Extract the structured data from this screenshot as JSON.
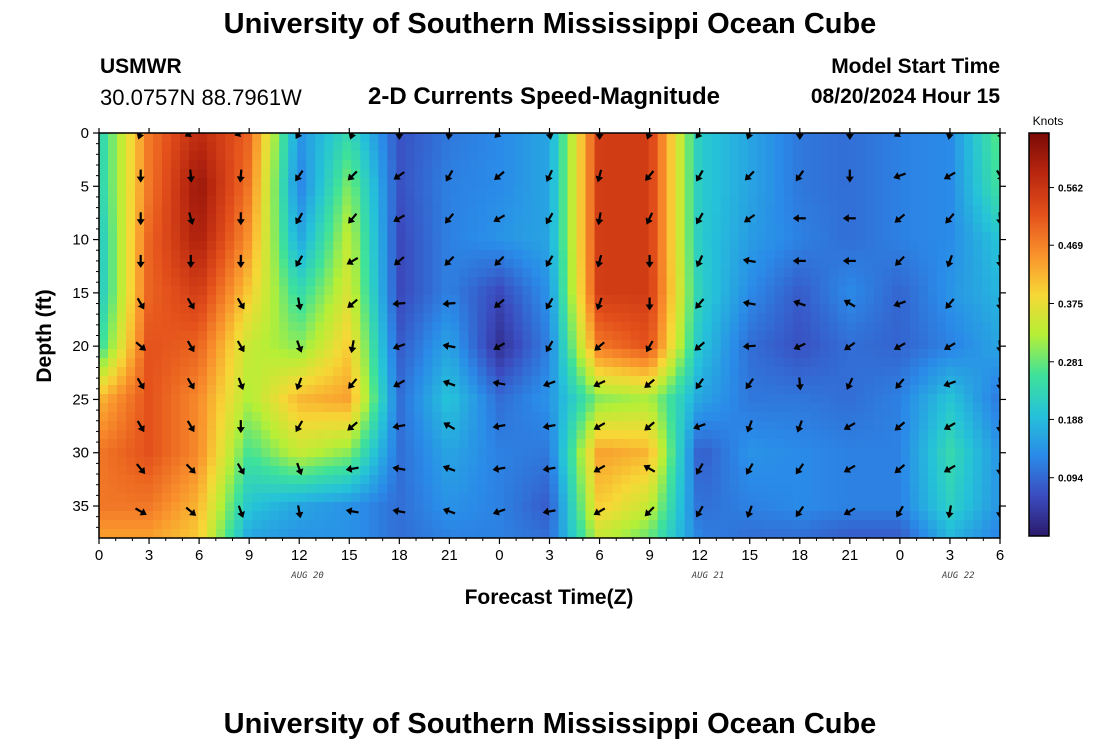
{
  "page": {
    "title": "University of Southern Mississippi Ocean Cube",
    "footer_title": "University of Southern Mississippi Ocean Cube",
    "station": "USMWR",
    "coordinates": "30.0757N  88.7961W",
    "subtitle": "2-D Currents Speed-Magnitude",
    "model_start_label": "Model Start Time",
    "model_start_value": "08/20/2024 Hour 15"
  },
  "chart_data": {
    "type": "heatmap",
    "title": "2-D Currents Speed-Magnitude",
    "xlabel": "Forecast Time(Z)",
    "ylabel": "Depth (ft)",
    "xlim": [
      0,
      54
    ],
    "ylim": [
      0,
      38
    ],
    "y_inverted": true,
    "x_ticks": [
      0,
      3,
      6,
      9,
      12,
      15,
      18,
      21,
      24,
      27,
      30,
      33,
      36,
      39,
      42,
      45,
      48,
      51,
      54
    ],
    "x_tick_labels": [
      "0",
      "3",
      "6",
      "9",
      "12",
      "15",
      "18",
      "21",
      "0",
      "3",
      "6",
      "9",
      "12",
      "15",
      "18",
      "21",
      "0",
      "3",
      "6"
    ],
    "y_ticks": [
      0,
      5,
      10,
      15,
      20,
      25,
      30,
      35
    ],
    "y_tick_labels": [
      "0",
      "5",
      "10",
      "15",
      "20",
      "25",
      "30",
      "35"
    ],
    "date_labels": [
      {
        "x": 12.5,
        "text": "AUG 20"
      },
      {
        "x": 36.5,
        "text": "AUG 21"
      },
      {
        "x": 51.5,
        "text": "AUG 22"
      }
    ],
    "colorbar": {
      "unit": "Knots",
      "min": 0.0,
      "max": 0.65,
      "tick_values": [
        0.094,
        0.188,
        0.281,
        0.375,
        0.469,
        0.562
      ],
      "tick_labels": [
        "0.094",
        "0.188",
        "0.281",
        "0.375",
        "0.469",
        "0.562"
      ],
      "colormap": [
        "#2b1a6b",
        "#3b4cc0",
        "#2a8be8",
        "#25c2d9",
        "#3fe29a",
        "#b6ef36",
        "#f7d736",
        "#f9902c",
        "#e4501b",
        "#b8260f",
        "#7a0a06"
      ]
    },
    "grid_x": [
      0,
      3,
      6,
      9,
      12,
      15,
      18,
      21,
      24,
      27,
      30,
      33,
      36,
      39,
      42,
      45,
      48,
      51,
      54
    ],
    "grid_y": [
      0,
      5,
      10,
      15,
      20,
      25,
      30,
      35,
      38
    ],
    "speed_knots": [
      [
        0.22,
        0.48,
        0.58,
        0.5,
        0.14,
        0.24,
        0.07,
        0.11,
        0.13,
        0.16,
        0.55,
        0.55,
        0.21,
        0.16,
        0.11,
        0.1,
        0.12,
        0.13,
        0.28
      ],
      [
        0.22,
        0.48,
        0.62,
        0.48,
        0.12,
        0.3,
        0.07,
        0.12,
        0.13,
        0.16,
        0.55,
        0.55,
        0.21,
        0.16,
        0.11,
        0.1,
        0.12,
        0.13,
        0.26
      ],
      [
        0.2,
        0.5,
        0.6,
        0.45,
        0.16,
        0.34,
        0.06,
        0.12,
        0.14,
        0.16,
        0.55,
        0.55,
        0.21,
        0.15,
        0.12,
        0.1,
        0.12,
        0.13,
        0.2
      ],
      [
        0.2,
        0.5,
        0.55,
        0.4,
        0.24,
        0.36,
        0.06,
        0.12,
        0.06,
        0.14,
        0.55,
        0.55,
        0.22,
        0.13,
        0.08,
        0.13,
        0.09,
        0.14,
        0.18
      ],
      [
        0.24,
        0.52,
        0.5,
        0.34,
        0.3,
        0.4,
        0.08,
        0.16,
        0.03,
        0.12,
        0.48,
        0.52,
        0.2,
        0.1,
        0.07,
        0.1,
        0.09,
        0.12,
        0.16
      ],
      [
        0.42,
        0.52,
        0.46,
        0.32,
        0.42,
        0.44,
        0.1,
        0.2,
        0.1,
        0.14,
        0.3,
        0.32,
        0.16,
        0.11,
        0.11,
        0.1,
        0.12,
        0.2,
        0.11
      ],
      [
        0.48,
        0.52,
        0.46,
        0.26,
        0.34,
        0.3,
        0.1,
        0.16,
        0.12,
        0.11,
        0.44,
        0.42,
        0.08,
        0.14,
        0.13,
        0.12,
        0.12,
        0.24,
        0.14
      ],
      [
        0.48,
        0.48,
        0.42,
        0.2,
        0.16,
        0.14,
        0.1,
        0.14,
        0.12,
        0.08,
        0.4,
        0.34,
        0.1,
        0.12,
        0.13,
        0.12,
        0.12,
        0.22,
        0.14
      ],
      [
        0.44,
        0.44,
        0.4,
        0.16,
        0.14,
        0.14,
        0.1,
        0.12,
        0.12,
        0.1,
        0.34,
        0.28,
        0.12,
        0.1,
        0.1,
        0.08,
        0.08,
        0.18,
        0.12
      ]
    ],
    "vector_times": [
      2.5,
      5.5,
      8.5,
      12,
      15.2,
      18,
      21,
      24,
      27,
      30,
      33,
      36,
      39,
      42,
      45,
      48,
      51,
      54
    ],
    "vector_depths": [
      0,
      4,
      8,
      12,
      16,
      20,
      23.5,
      27.5,
      31.5,
      35.5
    ],
    "vector_directions_deg": [
      [
        200,
        240,
        250,
        210,
        200,
        180,
        190,
        225,
        170,
        180,
        200,
        215,
        200,
        180,
        180,
        240,
        190,
        150
      ],
      [
        180,
        175,
        185,
        215,
        225,
        235,
        210,
        230,
        205,
        195,
        220,
        210,
        225,
        215,
        180,
        250,
        240,
        150
      ],
      [
        180,
        165,
        180,
        210,
        220,
        240,
        220,
        240,
        210,
        190,
        205,
        210,
        235,
        270,
        270,
        230,
        220,
        175
      ],
      [
        180,
        180,
        180,
        210,
        240,
        230,
        225,
        225,
        210,
        195,
        180,
        205,
        280,
        270,
        270,
        225,
        200,
        175
      ],
      [
        150,
        150,
        150,
        170,
        230,
        265,
        265,
        230,
        210,
        200,
        180,
        220,
        280,
        290,
        300,
        250,
        220,
        175
      ],
      [
        130,
        150,
        150,
        160,
        190,
        250,
        280,
        240,
        210,
        230,
        210,
        230,
        265,
        245,
        235,
        240,
        240,
        175
      ],
      [
        150,
        150,
        160,
        200,
        220,
        240,
        290,
        280,
        250,
        245,
        230,
        215,
        215,
        175,
        205,
        220,
        250,
        175
      ],
      [
        150,
        150,
        180,
        210,
        230,
        260,
        300,
        260,
        260,
        240,
        230,
        250,
        200,
        200,
        240,
        230,
        240,
        180
      ],
      [
        140,
        135,
        150,
        160,
        260,
        280,
        290,
        260,
        260,
        240,
        300,
        210,
        210,
        215,
        240,
        230,
        240,
        180
      ],
      [
        120,
        130,
        160,
        170,
        280,
        280,
        290,
        250,
        260,
        240,
        225,
        210,
        200,
        215,
        240,
        210,
        190,
        180
      ]
    ]
  }
}
